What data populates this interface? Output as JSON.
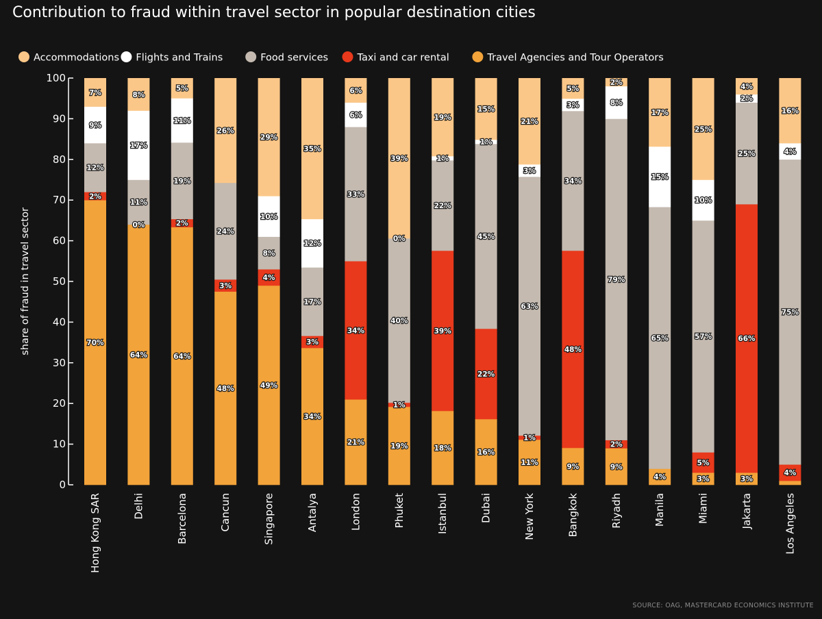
{
  "chart_data": {
    "type": "bar",
    "stacked": true,
    "title": "Contribution to fraud within travel sector in popular destination cities",
    "ylabel": "share of fraud in travel sector",
    "xlabel": "",
    "ylim": [
      0,
      100
    ],
    "yticks": [
      0,
      10,
      20,
      30,
      40,
      50,
      60,
      70,
      80,
      90,
      100
    ],
    "legend_position": "top-left",
    "source": "SOURCE: OAG, MASTERCARD ECONOMICS INSTITUTE",
    "categories": [
      "Hong Kong SAR",
      "Delhi",
      "Barcelona",
      "Cancun",
      "Singapore",
      "Antalya",
      "London",
      "Phuket",
      "Istanbul",
      "Dubai",
      "New York",
      "Bangkok",
      "Riyadh",
      "Manila",
      "Miami",
      "Jakarta",
      "Los Angeles"
    ],
    "legend_order": [
      "Accommodations",
      "Flights and Trains",
      "Food services",
      "Taxi and car rental",
      "Travel Agencies and Tour Operators"
    ],
    "series": [
      {
        "name": "Travel Agencies and Tour Operators",
        "color": "#F2A33A",
        "values": [
          70,
          64,
          64,
          48,
          49,
          34,
          21,
          19,
          18,
          16,
          11,
          9,
          9,
          4,
          3,
          3,
          1
        ],
        "labels": [
          "70%",
          "64%",
          "64%",
          "48%",
          "49%",
          "34%",
          "21%",
          "19%",
          "18%",
          "16%",
          "11%",
          "9%",
          "9%",
          "4%",
          "3%",
          "3%",
          ""
        ]
      },
      {
        "name": "Taxi and car rental",
        "color": "#E8391C",
        "values": [
          2,
          0,
          2,
          3,
          4,
          3,
          34,
          1,
          39,
          22,
          1,
          48,
          2,
          0,
          5,
          66,
          4
        ],
        "labels": [
          "2%",
          "",
          "2%",
          "3%",
          "4%",
          "3%",
          "34%",
          "1%",
          "39%",
          "22%",
          "1%",
          "48%",
          "2%",
          "",
          "5%",
          "66%",
          "4%"
        ]
      },
      {
        "name": "Food services",
        "color": "#C4BAB0",
        "values": [
          12,
          11,
          19,
          24,
          8,
          17,
          33,
          40,
          22,
          45,
          63,
          34,
          79,
          65,
          57,
          25,
          75
        ],
        "labels": [
          "12%",
          "11%",
          "19%",
          "24%",
          "8%",
          "17%",
          "33%",
          "40%",
          "22%",
          "45%",
          "63%",
          "34%",
          "79%",
          "65%",
          "57%",
          "25%",
          "75%"
        ]
      },
      {
        "name": "Flights and Trains",
        "color": "#FFFFFF",
        "values": [
          9,
          17,
          11,
          0,
          10,
          12,
          6,
          0,
          1,
          1,
          3,
          3,
          8,
          15,
          10,
          2,
          4
        ],
        "labels": [
          "9%",
          "17%",
          "11%",
          "",
          "10%",
          "12%",
          "6%",
          "0%",
          "1%",
          "1%",
          "3%",
          "3%",
          "8%",
          "15%",
          "10%",
          "2%",
          "4%"
        ]
      },
      {
        "name": "Accommodations",
        "color": "#FBC788",
        "values": [
          7,
          8,
          5,
          26,
          29,
          35,
          6,
          39,
          19,
          15,
          21,
          5,
          2,
          17,
          25,
          4,
          16
        ],
        "labels": [
          "7%",
          "8%",
          "5%",
          "26%",
          "29%",
          "35%",
          "6%",
          "39%",
          "19%",
          "15%",
          "21%",
          "5%",
          "2%",
          "17%",
          "25%",
          "4%",
          "16%"
        ]
      }
    ],
    "extra_labels": [
      {
        "category": "Delhi",
        "series": "Taxi and car rental",
        "text": "0%"
      }
    ]
  }
}
